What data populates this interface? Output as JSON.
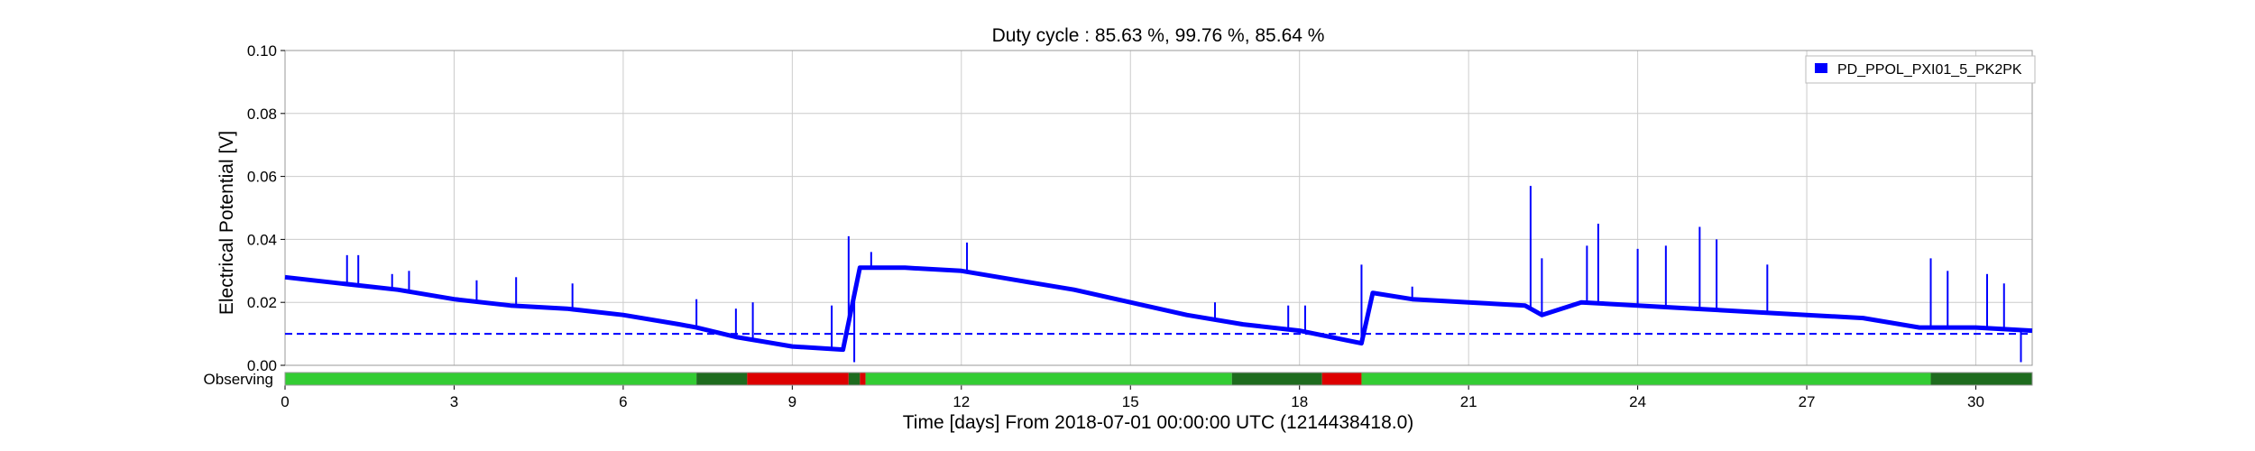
{
  "chart_data": {
    "type": "line",
    "title": "Duty cycle : 85.63 %, 99.76 %, 85.64 %",
    "xlabel": "Time [days] From 2018-07-01 00:00:00 UTC (1214438418.0)",
    "ylabel": "Electrical Potential [V]",
    "xlim": [
      0,
      31
    ],
    "ylim": [
      0,
      0.1
    ],
    "x_ticks": [
      0,
      3,
      6,
      9,
      12,
      15,
      18,
      21,
      24,
      27,
      30
    ],
    "y_ticks": [
      0.0,
      0.02,
      0.04,
      0.06,
      0.08,
      0.1
    ],
    "x_tick_labels": [
      "0",
      "3",
      "6",
      "9",
      "12",
      "15",
      "18",
      "21",
      "24",
      "27",
      "30"
    ],
    "y_tick_labels": [
      "0.00",
      "0.02",
      "0.04",
      "0.06",
      "0.08",
      "0.10"
    ],
    "grid": true,
    "legend_position": "top-right",
    "series": [
      {
        "name": "PD_PPOL_PXI01_5_PK2PK",
        "color": "#0000ff",
        "x": [
          0,
          0.5,
          1,
          2,
          3,
          4,
          5,
          6,
          7,
          7.3,
          8,
          9,
          9.9,
          10.2,
          11,
          12,
          13,
          14,
          15,
          16,
          17,
          18,
          19.1,
          19.3,
          20,
          21,
          22,
          22.3,
          23,
          24,
          25,
          26,
          27,
          28,
          29,
          30,
          31
        ],
        "y": [
          0.028,
          0.027,
          0.026,
          0.024,
          0.021,
          0.019,
          0.018,
          0.016,
          0.013,
          0.012,
          0.009,
          0.006,
          0.005,
          0.031,
          0.031,
          0.03,
          0.027,
          0.024,
          0.02,
          0.016,
          0.013,
          0.011,
          0.007,
          0.023,
          0.021,
          0.02,
          0.019,
          0.016,
          0.02,
          0.019,
          0.018,
          0.017,
          0.016,
          0.015,
          0.012,
          0.012,
          0.011
        ]
      }
    ],
    "spikes": [
      {
        "x": 1.1,
        "y": 0.035
      },
      {
        "x": 1.3,
        "y": 0.035
      },
      {
        "x": 1.9,
        "y": 0.029
      },
      {
        "x": 2.2,
        "y": 0.03
      },
      {
        "x": 3.4,
        "y": 0.027
      },
      {
        "x": 4.1,
        "y": 0.028
      },
      {
        "x": 5.1,
        "y": 0.026
      },
      {
        "x": 7.3,
        "y": 0.021
      },
      {
        "x": 8.0,
        "y": 0.018
      },
      {
        "x": 8.3,
        "y": 0.02
      },
      {
        "x": 9.7,
        "y": 0.019
      },
      {
        "x": 10.0,
        "y": 0.041
      },
      {
        "x": 10.1,
        "y": 0.001
      },
      {
        "x": 10.4,
        "y": 0.036
      },
      {
        "x": 12.1,
        "y": 0.039
      },
      {
        "x": 16.5,
        "y": 0.02
      },
      {
        "x": 17.8,
        "y": 0.019
      },
      {
        "x": 18.1,
        "y": 0.019
      },
      {
        "x": 19.1,
        "y": 0.032
      },
      {
        "x": 20.0,
        "y": 0.025
      },
      {
        "x": 22.1,
        "y": 0.057
      },
      {
        "x": 22.3,
        "y": 0.034
      },
      {
        "x": 23.1,
        "y": 0.038
      },
      {
        "x": 23.3,
        "y": 0.045
      },
      {
        "x": 24.0,
        "y": 0.037
      },
      {
        "x": 24.5,
        "y": 0.038
      },
      {
        "x": 25.1,
        "y": 0.044
      },
      {
        "x": 25.4,
        "y": 0.04
      },
      {
        "x": 26.3,
        "y": 0.032
      },
      {
        "x": 29.2,
        "y": 0.034
      },
      {
        "x": 29.5,
        "y": 0.03
      },
      {
        "x": 30.2,
        "y": 0.029
      },
      {
        "x": 30.5,
        "y": 0.026
      },
      {
        "x": 30.8,
        "y": 0.001
      }
    ],
    "threshold": {
      "y": 0.01,
      "color": "#0000ff",
      "style": "dashed"
    },
    "state_bar": {
      "label": "Observing",
      "segments": [
        {
          "start": 0,
          "end": 7.3,
          "color": "#33cc33"
        },
        {
          "start": 7.3,
          "end": 8.2,
          "color": "#1e6b1e"
        },
        {
          "start": 8.2,
          "end": 10.0,
          "color": "#dd0000"
        },
        {
          "start": 10.0,
          "end": 10.2,
          "color": "#1e6b1e"
        },
        {
          "start": 10.2,
          "end": 10.3,
          "color": "#dd0000"
        },
        {
          "start": 10.3,
          "end": 16.8,
          "color": "#33cc33"
        },
        {
          "start": 16.8,
          "end": 18.4,
          "color": "#1e6b1e"
        },
        {
          "start": 18.4,
          "end": 19.1,
          "color": "#dd0000"
        },
        {
          "start": 19.1,
          "end": 29.2,
          "color": "#33cc33"
        },
        {
          "start": 29.2,
          "end": 31,
          "color": "#1e6b1e"
        }
      ]
    }
  }
}
